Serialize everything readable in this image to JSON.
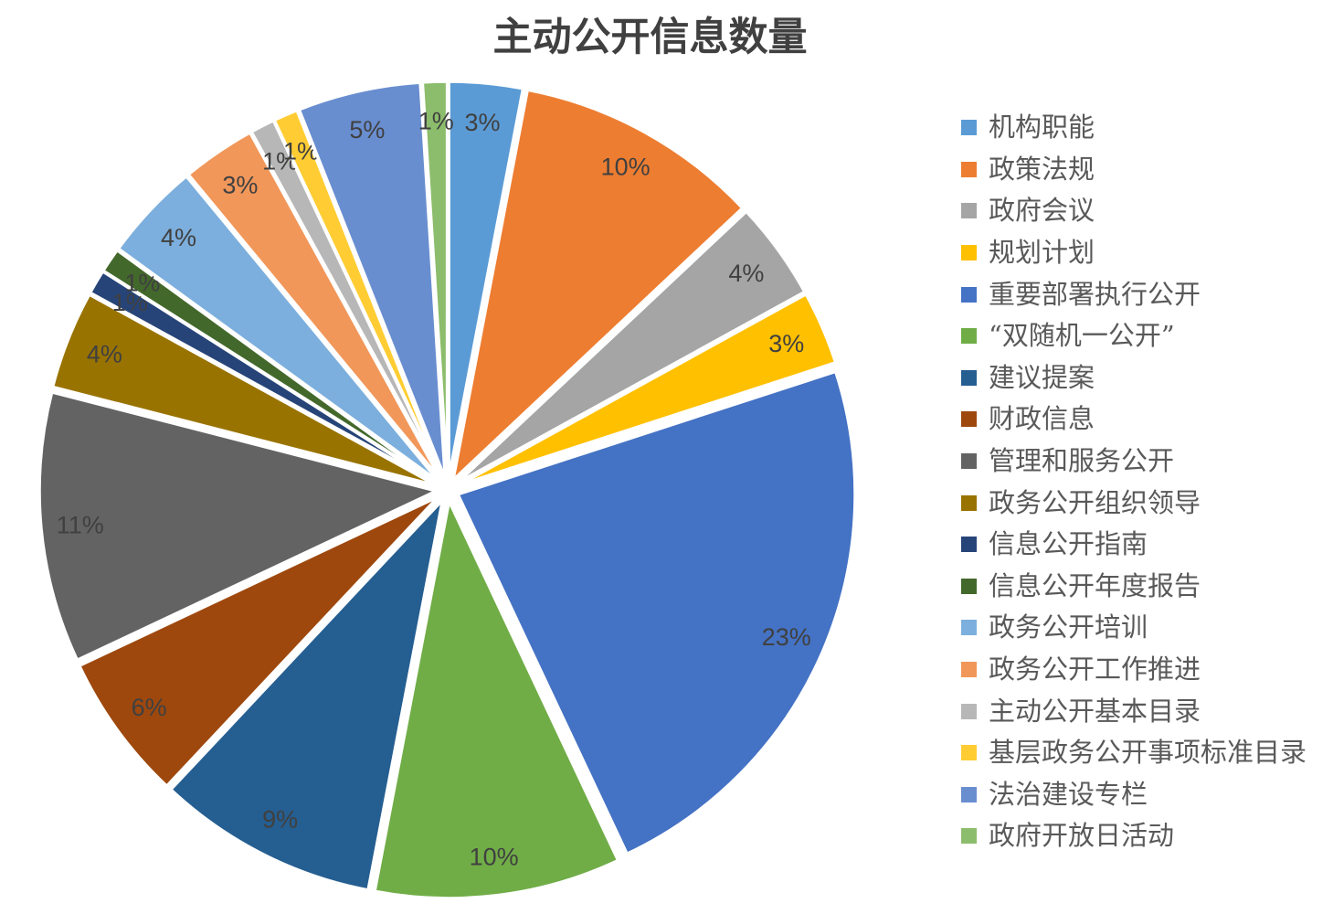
{
  "chart_data": {
    "type": "pie",
    "title": "主动公开信息数量",
    "legend_position": "right",
    "direction": "clockwise",
    "start_angle_deg": 0,
    "label_style": "inside-end",
    "label_unit": "%",
    "exploded": true,
    "slices": [
      {
        "label": "机构职能",
        "value": 3,
        "pct_label": "3%",
        "color": "#5B9BD5"
      },
      {
        "label": "政策法规",
        "value": 10,
        "pct_label": "10%",
        "color": "#ED7D31"
      },
      {
        "label": "政府会议",
        "value": 4,
        "pct_label": "4%",
        "color": "#A5A5A5"
      },
      {
        "label": "规划计划",
        "value": 3,
        "pct_label": "3%",
        "color": "#FFC000"
      },
      {
        "label": "重要部署执行公开",
        "value": 23,
        "pct_label": "23%",
        "color": "#4472C4"
      },
      {
        "label": "“双随机一公开”",
        "value": 10,
        "pct_label": "10%",
        "color": "#70AD47"
      },
      {
        "label": "建议提案",
        "value": 9,
        "pct_label": "9%",
        "color": "#255E91"
      },
      {
        "label": "财政信息",
        "value": 6,
        "pct_label": "6%",
        "color": "#9E480E"
      },
      {
        "label": "管理和服务公开",
        "value": 11,
        "pct_label": "11%",
        "color": "#636363"
      },
      {
        "label": "政务公开组织领导",
        "value": 4,
        "pct_label": "4%",
        "color": "#997300"
      },
      {
        "label": "信息公开指南",
        "value": 1,
        "pct_label": "1%",
        "color": "#264478"
      },
      {
        "label": "信息公开年度报告",
        "value": 1,
        "pct_label": "1%",
        "color": "#43682B"
      },
      {
        "label": "政务公开培训",
        "value": 4,
        "pct_label": "4%",
        "color": "#7CAFDD"
      },
      {
        "label": "政务公开工作推进",
        "value": 3,
        "pct_label": "3%",
        "color": "#F1975A"
      },
      {
        "label": "主动公开基本目录",
        "value": 1,
        "pct_label": "1%",
        "color": "#B7B7B7"
      },
      {
        "label": "基层政务公开事项标准目录",
        "value": 1,
        "pct_label": "1%",
        "color": "#FFCD33"
      },
      {
        "label": "法治建设专栏",
        "value": 5,
        "pct_label": "5%",
        "color": "#698ED0"
      },
      {
        "label": "政府开放日活动",
        "value": 1,
        "pct_label": "1%",
        "color": "#8CBD6C"
      }
    ]
  },
  "styles": {
    "background": "#FFFFFF",
    "title_color": "#404040",
    "value_label_color": "#404040",
    "legend_text_color": "#595959",
    "slice_border_color": "#FFFFFF"
  }
}
